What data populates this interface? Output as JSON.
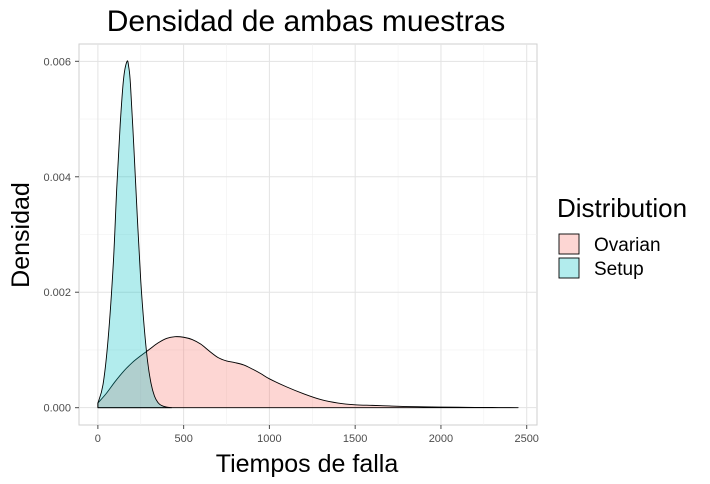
{
  "chart_data": {
    "type": "area",
    "title": "Densidad de ambas muestras",
    "xlabel": "Tiempos de falla",
    "ylabel": "Densidad",
    "xlim": [
      -110,
      2560
    ],
    "ylim": [
      -0.0003,
      0.0063
    ],
    "x_ticks": [
      0,
      500,
      1000,
      1500,
      2000,
      2500
    ],
    "x_tick_labels": [
      "0",
      "500",
      "1000",
      "1500",
      "2000",
      "2500"
    ],
    "y_ticks": [
      0,
      0.002,
      0.004,
      0.006
    ],
    "y_tick_labels": [
      "0.000",
      "0.002",
      "0.004",
      "0.006"
    ],
    "grid": true,
    "legend": {
      "title": "Distribution",
      "position": "right",
      "entries": [
        {
          "name": "Ovarian",
          "color": "#F8766D"
        },
        {
          "name": "Setup",
          "color": "#00BFC4"
        }
      ]
    },
    "series": [
      {
        "name": "Ovarian",
        "color": "#F8766D",
        "x": [
          0,
          50,
          100,
          150,
          200,
          250,
          300,
          350,
          400,
          450,
          500,
          550,
          600,
          650,
          700,
          750,
          800,
          850,
          900,
          950,
          1000,
          1100,
          1200,
          1300,
          1400,
          1500,
          1600,
          1700,
          1800,
          1900,
          2000,
          2100,
          2200,
          2300,
          2400,
          2450
        ],
        "y": [
          8e-05,
          0.00025,
          0.00045,
          0.00063,
          0.00078,
          0.0009,
          0.00101,
          0.00112,
          0.0012,
          0.00123,
          0.00122,
          0.00118,
          0.0011,
          0.00098,
          0.00087,
          0.00081,
          0.00078,
          0.00074,
          0.00067,
          0.00059,
          0.0005,
          0.00036,
          0.00024,
          0.00014,
          8e-05,
          5e-05,
          4e-05,
          3e-05,
          2e-05,
          1.5e-05,
          1e-05,
          8e-06,
          5e-06,
          3e-06,
          1e-06,
          0.0
        ]
      },
      {
        "name": "Setup",
        "color": "#00BFC4",
        "x": [
          0,
          30,
          60,
          90,
          110,
          130,
          150,
          170,
          180,
          190,
          210,
          230,
          250,
          270,
          290,
          310,
          330,
          350,
          370,
          400,
          430
        ],
        "y": [
          8e-05,
          0.0004,
          0.0012,
          0.0025,
          0.0038,
          0.0049,
          0.0057,
          0.006,
          0.0059,
          0.0056,
          0.0045,
          0.0033,
          0.0022,
          0.0014,
          0.0008,
          0.00042,
          0.0002,
          9e-05,
          4e-05,
          1e-05,
          0.0
        ]
      }
    ]
  }
}
